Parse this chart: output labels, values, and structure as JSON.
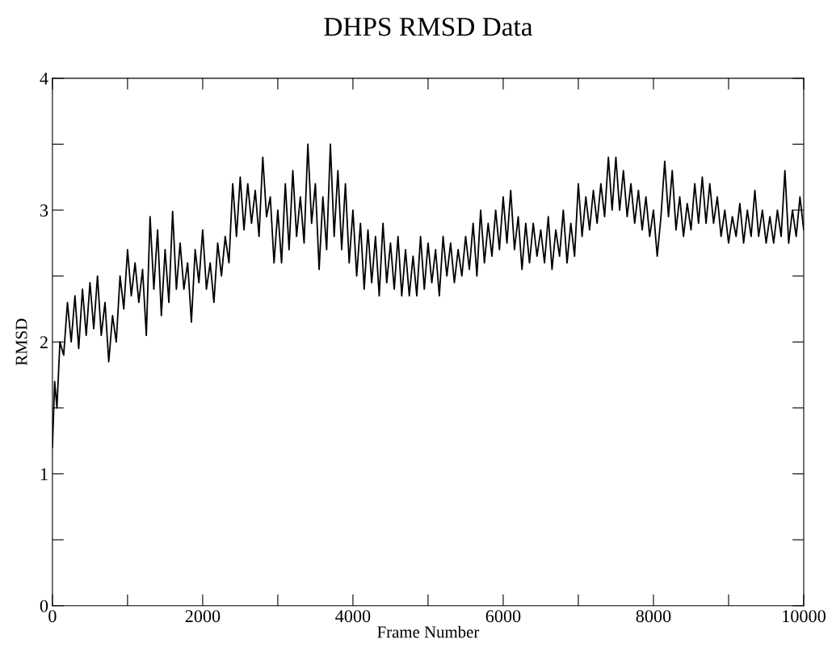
{
  "chart_data": {
    "type": "line",
    "title": "DHPS RMSD Data",
    "xlabel": "Frame Number",
    "ylabel": "RMSD",
    "x": [
      0,
      30,
      60,
      100,
      150,
      200,
      250,
      300,
      350,
      400,
      450,
      500,
      550,
      600,
      650,
      700,
      750,
      800,
      850,
      900,
      950,
      1000,
      1050,
      1100,
      1150,
      1200,
      1250,
      1300,
      1350,
      1400,
      1450,
      1500,
      1550,
      1600,
      1650,
      1700,
      1750,
      1800,
      1850,
      1900,
      1950,
      2000,
      2050,
      2100,
      2150,
      2200,
      2250,
      2300,
      2350,
      2400,
      2450,
      2500,
      2550,
      2600,
      2650,
      2700,
      2750,
      2800,
      2850,
      2900,
      2950,
      3000,
      3050,
      3100,
      3150,
      3200,
      3250,
      3300,
      3350,
      3400,
      3450,
      3500,
      3550,
      3600,
      3650,
      3700,
      3750,
      3800,
      3850,
      3900,
      3950,
      4000,
      4050,
      4100,
      4150,
      4200,
      4250,
      4300,
      4350,
      4400,
      4450,
      4500,
      4550,
      4600,
      4650,
      4700,
      4750,
      4800,
      4850,
      4900,
      4950,
      5000,
      5050,
      5100,
      5150,
      5200,
      5250,
      5300,
      5350,
      5400,
      5450,
      5500,
      5550,
      5600,
      5650,
      5700,
      5750,
      5800,
      5850,
      5900,
      5950,
      6000,
      6050,
      6100,
      6150,
      6200,
      6250,
      6300,
      6350,
      6400,
      6450,
      6500,
      6550,
      6600,
      6650,
      6700,
      6750,
      6800,
      6850,
      6900,
      6950,
      7000,
      7050,
      7100,
      7150,
      7200,
      7250,
      7300,
      7350,
      7400,
      7450,
      7500,
      7550,
      7600,
      7650,
      7700,
      7750,
      7800,
      7850,
      7900,
      7950,
      8000,
      8050,
      8100,
      8150,
      8200,
      8250,
      8300,
      8350,
      8400,
      8450,
      8500,
      8550,
      8600,
      8650,
      8700,
      8750,
      8800,
      8850,
      8900,
      8950,
      9000,
      9050,
      9100,
      9150,
      9200,
      9250,
      9300,
      9350,
      9400,
      9450,
      9500,
      9550,
      9600,
      9650,
      9700,
      9750,
      9800,
      9850,
      9900,
      9950,
      10000
    ],
    "series": [
      {
        "color": "#000000",
        "values": [
          1.2,
          1.7,
          1.5,
          2.0,
          1.9,
          2.3,
          2.0,
          2.35,
          1.95,
          2.4,
          2.05,
          2.45,
          2.1,
          2.5,
          2.05,
          2.3,
          1.85,
          2.2,
          2.0,
          2.5,
          2.25,
          2.7,
          2.35,
          2.6,
          2.3,
          2.55,
          2.05,
          2.95,
          2.4,
          2.85,
          2.2,
          2.7,
          2.3,
          2.99,
          2.4,
          2.75,
          2.4,
          2.6,
          2.15,
          2.7,
          2.45,
          2.85,
          2.4,
          2.6,
          2.3,
          2.75,
          2.5,
          2.8,
          2.6,
          3.2,
          2.8,
          3.25,
          2.85,
          3.2,
          2.9,
          3.15,
          2.8,
          3.4,
          2.95,
          3.1,
          2.6,
          3.0,
          2.6,
          3.2,
          2.7,
          3.3,
          2.8,
          3.1,
          2.75,
          3.5,
          2.9,
          3.2,
          2.55,
          3.1,
          2.7,
          3.5,
          2.8,
          3.3,
          2.7,
          3.2,
          2.6,
          3.0,
          2.5,
          2.9,
          2.4,
          2.85,
          2.45,
          2.8,
          2.35,
          2.9,
          2.45,
          2.75,
          2.4,
          2.8,
          2.35,
          2.7,
          2.35,
          2.65,
          2.35,
          2.8,
          2.4,
          2.75,
          2.45,
          2.7,
          2.35,
          2.8,
          2.5,
          2.75,
          2.45,
          2.7,
          2.5,
          2.8,
          2.55,
          2.9,
          2.5,
          3.0,
          2.6,
          2.9,
          2.65,
          3.0,
          2.7,
          3.1,
          2.75,
          3.15,
          2.7,
          2.95,
          2.55,
          2.9,
          2.6,
          2.9,
          2.65,
          2.85,
          2.6,
          2.95,
          2.55,
          2.85,
          2.65,
          3.0,
          2.6,
          2.9,
          2.65,
          3.2,
          2.8,
          3.1,
          2.85,
          3.15,
          2.9,
          3.2,
          2.95,
          3.4,
          3.0,
          3.4,
          3.0,
          3.3,
          2.95,
          3.2,
          2.9,
          3.15,
          2.85,
          3.1,
          2.8,
          3.0,
          2.65,
          2.95,
          3.37,
          2.95,
          3.3,
          2.85,
          3.1,
          2.8,
          3.05,
          2.85,
          3.2,
          2.9,
          3.25,
          2.9,
          3.2,
          2.9,
          3.1,
          2.8,
          3.0,
          2.75,
          2.95,
          2.8,
          3.05,
          2.75,
          3.0,
          2.8,
          3.15,
          2.8,
          3.0,
          2.75,
          2.95,
          2.75,
          3.0,
          2.8,
          3.3,
          2.75,
          3.0,
          2.8,
          3.1,
          2.85
        ]
      }
    ],
    "xlim": [
      0,
      10000
    ],
    "ylim": [
      0,
      4
    ],
    "xticks": [
      0,
      {
        "value": 1000,
        "label": null
      },
      2000,
      {
        "value": 3000,
        "label": null
      },
      4000,
      {
        "value": 5000,
        "label": null
      },
      6000,
      {
        "value": 7000,
        "label": null
      },
      8000,
      {
        "value": 9000,
        "label": null
      },
      10000
    ],
    "yticks": [
      0,
      {
        "value": 0.5,
        "label": null
      },
      1,
      {
        "value": 1.5,
        "label": null
      },
      2,
      {
        "value": 2.5,
        "label": null
      },
      3,
      {
        "value": 3.5,
        "label": null
      },
      4
    ],
    "line_style": "solid",
    "marker": "none"
  }
}
